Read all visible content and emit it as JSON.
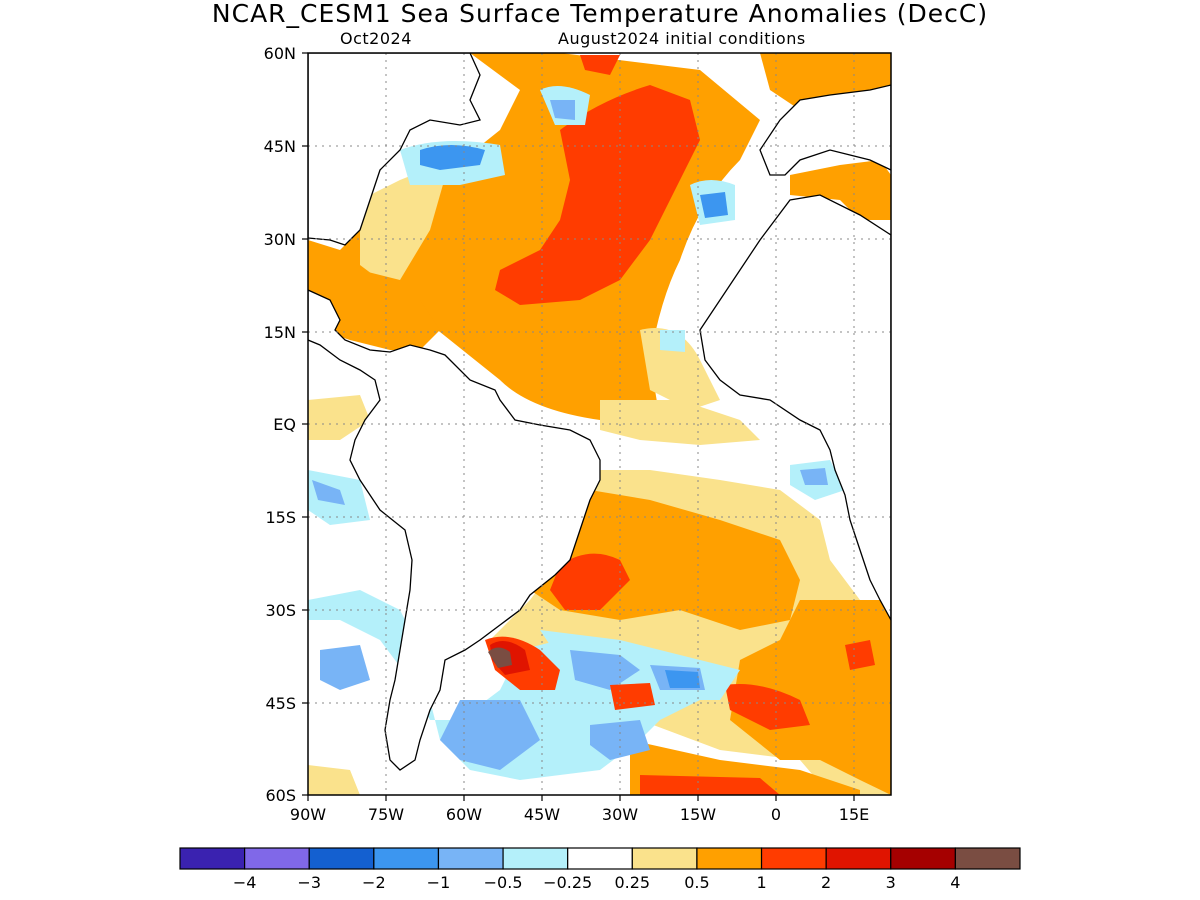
{
  "title": "NCAR_CESM1 Sea Surface Temperature Anomalies (DecC)",
  "subtitle_left": "Oct2024",
  "subtitle_right": "August2024 initial conditions",
  "map": {
    "region": "Atlantic Ocean",
    "lat_ticks": [
      "60N",
      "45N",
      "30N",
      "15N",
      "EQ",
      "15S",
      "30S",
      "45S",
      "60S"
    ],
    "lon_ticks": [
      "90W",
      "75W",
      "60W",
      "45W",
      "30W",
      "15W",
      "0",
      "15E"
    ],
    "grid": "dotted"
  },
  "colorbar": {
    "colors": [
      "#3a22b0",
      "#8068e8",
      "#1460d0",
      "#3c96f0",
      "#78b4f6",
      "#b4f0fa",
      "#ffffff",
      "#fae28c",
      "#ffa000",
      "#ff3c00",
      "#e01400",
      "#a50000",
      "#7a4d42"
    ],
    "labels": [
      "−4",
      "−3",
      "−2",
      "−1",
      "−0.5",
      "−0.25",
      "0.25",
      "0.5",
      "1",
      "2",
      "3",
      "4"
    ]
  }
}
